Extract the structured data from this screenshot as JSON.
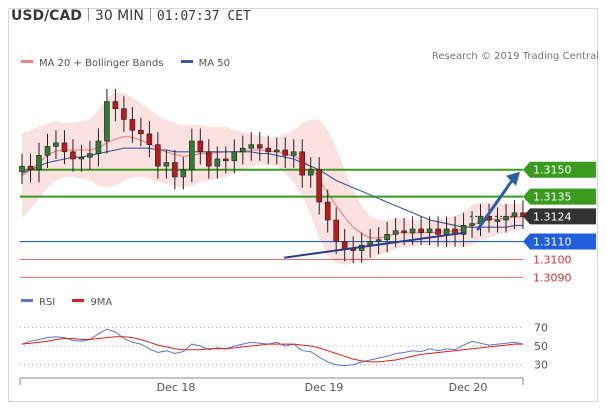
{
  "header": {
    "symbol": "USD/CAD",
    "timeframe": "30 MIN",
    "time": "01:07:37 CET"
  },
  "legend_main": {
    "bollinger": "MA 20 + Bollinger Bands",
    "ma50": "MA 50",
    "bollinger_color": "#f08080",
    "ma50_color": "#3a5a9c"
  },
  "credit": "Research © 2019 Trading Central",
  "legend_rsi": {
    "rsi": "RSI",
    "ma9": "9MA",
    "rsi_color": "#5a78d0",
    "ma9_color": "#e02020"
  },
  "chart_data": [
    {
      "type": "candlestick",
      "title": "USD/CAD 30 MIN",
      "x_ticks": [
        "Dec 18",
        "Dec 19",
        "Dec 20"
      ],
      "price_levels": [
        {
          "label": "1.3150",
          "value": 1.315,
          "kind": "resistance",
          "color": "#3a9c1e"
        },
        {
          "label": "1.3135",
          "value": 1.3135,
          "kind": "resistance",
          "color": "#3a9c1e"
        },
        {
          "label": "1.3124",
          "value": 1.3124,
          "kind": "last-price",
          "color": "#333333"
        },
        {
          "label": "1.3110",
          "value": 1.311,
          "kind": "pivot",
          "color": "#1f5fdb"
        },
        {
          "label": "1.3100",
          "value": 1.31,
          "kind": "support",
          "color": "#e03030"
        },
        {
          "label": "1.3090",
          "value": 1.309,
          "kind": "support",
          "color": "#e03030"
        }
      ],
      "close": [
        1.3152,
        1.315,
        1.3158,
        1.3163,
        1.3165,
        1.316,
        1.3156,
        1.3157,
        1.3159,
        1.3166,
        1.3188,
        1.3184,
        1.3178,
        1.3172,
        1.317,
        1.3164,
        1.3152,
        1.3154,
        1.3146,
        1.315,
        1.3166,
        1.316,
        1.3152,
        1.3156,
        1.3155,
        1.316,
        1.3162,
        1.3164,
        1.3162,
        1.316,
        1.3161,
        1.3158,
        1.316,
        1.3147,
        1.315,
        1.3132,
        1.3122,
        1.311,
        1.3106,
        1.3105,
        1.3108,
        1.311,
        1.3111,
        1.3114,
        1.3116,
        1.3115,
        1.3117,
        1.3115,
        1.3117,
        1.3114,
        1.3117,
        1.3114,
        1.3119,
        1.312,
        1.3124,
        1.3122,
        1.3122,
        1.3124,
        1.3126,
        1.3124
      ],
      "ma50": [
        1.3148,
        1.315,
        1.3152,
        1.3154,
        1.3155,
        1.3156,
        1.3157,
        1.3157,
        1.3158,
        1.3159,
        1.316,
        1.3161,
        1.3162,
        1.3162,
        1.3162,
        1.3162,
        1.3161,
        1.3161,
        1.316,
        1.316,
        1.316,
        1.316,
        1.316,
        1.316,
        1.316,
        1.316,
        1.316,
        1.316,
        1.3159,
        1.3159,
        1.3158,
        1.3157,
        1.3156,
        1.3154,
        1.3152,
        1.315,
        1.3147,
        1.3144,
        1.3142,
        1.314,
        1.3138,
        1.3136,
        1.3134,
        1.3132,
        1.313,
        1.3128,
        1.3126,
        1.3124,
        1.3122,
        1.3121,
        1.312,
        1.3119,
        1.3118,
        1.3118,
        1.3118,
        1.3118,
        1.3118,
        1.3118,
        1.3119,
        1.3119
      ],
      "bb_upper": [
        1.317,
        1.3172,
        1.3174,
        1.3176,
        1.3177,
        1.3176,
        1.3176,
        1.3177,
        1.3178,
        1.3183,
        1.319,
        1.3193,
        1.3193,
        1.319,
        1.3187,
        1.3184,
        1.318,
        1.3178,
        1.3176,
        1.3175,
        1.3175,
        1.3175,
        1.3174,
        1.3174,
        1.3174,
        1.3172,
        1.3171,
        1.317,
        1.3169,
        1.3168,
        1.3168,
        1.317,
        1.3172,
        1.3176,
        1.3178,
        1.3178,
        1.3172,
        1.3162,
        1.315,
        1.3138,
        1.313,
        1.3124,
        1.3122,
        1.3122,
        1.3123,
        1.3123,
        1.3122,
        1.3122,
        1.3122,
        1.3122,
        1.3123,
        1.3124,
        1.3127,
        1.313,
        1.3132,
        1.3132,
        1.3131,
        1.3131,
        1.3131,
        1.3131
      ],
      "bb_lower": [
        1.3123,
        1.3128,
        1.3134,
        1.314,
        1.3144,
        1.3146,
        1.3146,
        1.3145,
        1.3144,
        1.3141,
        1.314,
        1.3141,
        1.3144,
        1.3146,
        1.3146,
        1.3145,
        1.3143,
        1.3142,
        1.3141,
        1.314,
        1.3141,
        1.3143,
        1.3144,
        1.3145,
        1.3146,
        1.3148,
        1.315,
        1.3152,
        1.3153,
        1.3153,
        1.3152,
        1.3148,
        1.3143,
        1.3135,
        1.3125,
        1.3112,
        1.3102,
        1.3098,
        1.3097,
        1.3098,
        1.3099,
        1.31,
        1.3102,
        1.3104,
        1.3106,
        1.3107,
        1.3107,
        1.3108,
        1.3108,
        1.3108,
        1.3108,
        1.3108,
        1.3107,
        1.3108,
        1.311,
        1.3112,
        1.3114,
        1.3115,
        1.3116,
        1.3117
      ],
      "trendline": {
        "from": [
          0.525,
          1.3101
        ],
        "to": [
          0.985,
          1.3115
        ]
      },
      "forecast_arrow": {
        "from": 1.3117,
        "to": 1.315
      }
    },
    {
      "type": "line",
      "title": "RSI",
      "yticks": [
        70,
        50,
        30
      ],
      "series": [
        {
          "name": "RSI",
          "values": [
            52,
            55,
            57,
            59,
            60,
            59,
            56,
            55,
            57,
            63,
            68,
            65,
            58,
            54,
            52,
            47,
            43,
            45,
            42,
            44,
            52,
            50,
            46,
            48,
            47,
            50,
            52,
            54,
            53,
            52,
            54,
            50,
            52,
            45,
            44,
            38,
            33,
            30,
            29,
            30,
            33,
            35,
            37,
            39,
            42,
            43,
            45,
            44,
            47,
            45,
            47,
            46,
            51,
            55,
            53,
            51,
            52,
            53,
            54,
            52
          ]
        },
        {
          "name": "9MA",
          "values": [
            52,
            53,
            54,
            55,
            57,
            58,
            58,
            57,
            57,
            58,
            59,
            60,
            60,
            59,
            57,
            54,
            51,
            49,
            47,
            46,
            46,
            46,
            47,
            47,
            47,
            48,
            49,
            50,
            51,
            52,
            52,
            52,
            52,
            51,
            50,
            48,
            45,
            42,
            39,
            36,
            34,
            33,
            33,
            34,
            35,
            37,
            39,
            41,
            42,
            43,
            44,
            45,
            46,
            47,
            48,
            49,
            50,
            51,
            52,
            52
          ]
        }
      ]
    }
  ]
}
